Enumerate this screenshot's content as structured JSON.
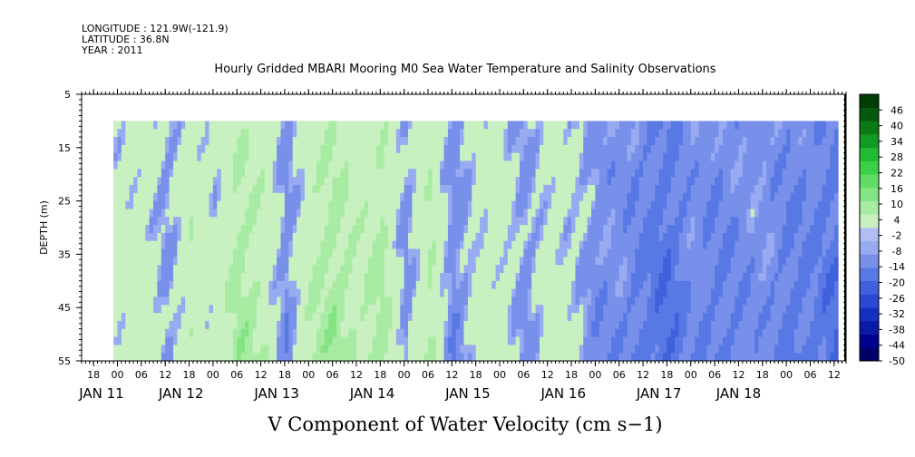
{
  "meta": {
    "longitude": "LONGITUDE : 121.9W(-121.9)",
    "latitude": "LATITUDE : 36.8N",
    "year": "YEAR : 2011"
  },
  "chart_data": {
    "type": "heatmap",
    "title": "Hourly Gridded MBARI Mooring M0 Sea Water Temperature and Salinity Observations",
    "subtitle": "V Component of Water Velocity (cm s−1)",
    "ylabel": "DEPTH (m)",
    "xlabel": "",
    "y_axis": {
      "range": [
        55,
        5
      ],
      "ticks": [
        5,
        15,
        25,
        35,
        45,
        55
      ],
      "tick_labels": [
        "5",
        "15",
        "25",
        "35",
        "45",
        "55"
      ]
    },
    "x_axis": {
      "range_hours": [
        -9,
        183
      ],
      "tick_hours": [
        -6,
        0,
        6,
        12,
        18,
        24,
        30,
        36,
        42,
        48,
        54,
        60,
        66,
        72,
        78,
        84,
        90,
        96,
        102,
        108,
        114,
        120,
        126,
        132,
        138,
        144,
        150,
        156,
        162,
        168,
        174,
        180
      ],
      "tick_labels": [
        "18",
        "00",
        "06",
        "12",
        "18",
        "00",
        "06",
        "12",
        "18",
        "00",
        "06",
        "12",
        "18",
        "00",
        "06",
        "12",
        "18",
        "00",
        "06",
        "12",
        "18",
        "00",
        "06",
        "12",
        "18",
        "00",
        "06",
        "12",
        "18",
        "00",
        "06",
        "12"
      ],
      "day_labels": [
        {
          "label": "JAN 11",
          "hour": -4
        },
        {
          "label": "JAN 12",
          "hour": 16
        },
        {
          "label": "JAN 13",
          "hour": 40
        },
        {
          "label": "JAN 14",
          "hour": 64
        },
        {
          "label": "JAN 15",
          "hour": 88
        },
        {
          "label": "JAN 16",
          "hour": 112
        },
        {
          "label": "JAN 17",
          "hour": 136
        },
        {
          "label": "JAN 18",
          "hour": 156
        }
      ]
    },
    "data_extent": {
      "x_hours": [
        -1,
        181
      ],
      "depth": [
        10,
        55
      ]
    },
    "colorbar": {
      "levels": [
        -50,
        -44,
        -38,
        -32,
        -26,
        -20,
        -14,
        -8,
        -2,
        4,
        10,
        16,
        22,
        28,
        34,
        40,
        46
      ],
      "tick_labels": [
        "-50",
        "-44",
        "-38",
        "-32",
        "-26",
        "-20",
        "-14",
        "-8",
        "-2",
        "4",
        "10",
        "16",
        "22",
        "28",
        "34",
        "40",
        "46"
      ],
      "negative_colors": [
        "#000066",
        "#00008f",
        "#0a1aa8",
        "#1530c0",
        "#2a48d4",
        "#4060dc",
        "#5878e4",
        "#7890ea",
        "#98aaf0",
        "#b2bdf4"
      ],
      "positive_colors": [
        "#c8f0c0",
        "#a8eca4",
        "#84e484",
        "#60dc64",
        "#3cd048",
        "#22bc34",
        "#139a22",
        "#0a7a16",
        "#045a0c",
        "#023c06"
      ]
    },
    "column_means": [
      {
        "hour": 0,
        "v": 3
      },
      {
        "hour": 6,
        "v": 5
      },
      {
        "hour": 12,
        "v": -3
      },
      {
        "hour": 18,
        "v": 7
      },
      {
        "hour": 24,
        "v": 2
      },
      {
        "hour": 30,
        "v": 12
      },
      {
        "hour": 36,
        "v": 8
      },
      {
        "hour": 42,
        "v": -5
      },
      {
        "hour": 48,
        "v": 8
      },
      {
        "hour": 54,
        "v": 13
      },
      {
        "hour": 60,
        "v": 7
      },
      {
        "hour": 66,
        "v": 12
      },
      {
        "hour": 72,
        "v": -4
      },
      {
        "hour": 78,
        "v": 10
      },
      {
        "hour": 84,
        "v": -6
      },
      {
        "hour": 90,
        "v": 3
      },
      {
        "hour": 96,
        "v": 4
      },
      {
        "hour": 102,
        "v": -4
      },
      {
        "hour": 108,
        "v": 4
      },
      {
        "hour": 114,
        "v": 1
      },
      {
        "hour": 120,
        "v": -5
      },
      {
        "hour": 126,
        "v": -5
      },
      {
        "hour": 132,
        "v": -9
      },
      {
        "hour": 138,
        "v": -12
      },
      {
        "hour": 144,
        "v": -5
      },
      {
        "hour": 150,
        "v": -8
      },
      {
        "hour": 156,
        "v": -6
      },
      {
        "hour": 162,
        "v": -4
      },
      {
        "hour": 168,
        "v": -9
      },
      {
        "hour": 174,
        "v": -8
      },
      {
        "hour": 180,
        "v": -12
      }
    ]
  }
}
